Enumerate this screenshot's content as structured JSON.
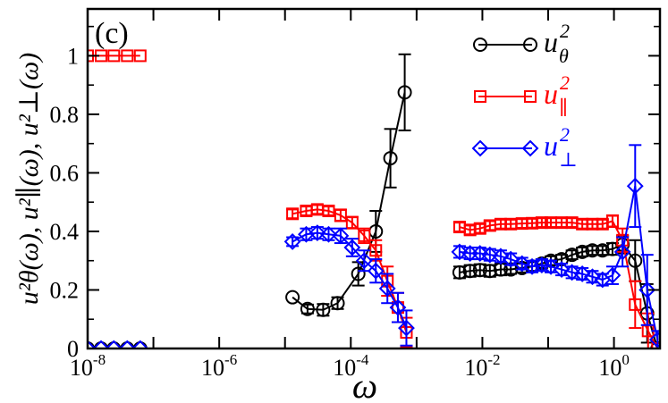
{
  "chart_data": {
    "type": "line",
    "panel_label": "(c)",
    "xlabel": "ω",
    "ylabel": "u²θ(ω), u²∥(ω), u²⊥(ω)",
    "x_scale": "log",
    "xlim": [
      1e-08,
      5
    ],
    "ylim": [
      0,
      1.16
    ],
    "grid": false,
    "legend_position": "top-right",
    "x_ticks": [
      {
        "value": 1e-08,
        "base": "10",
        "exp": "-8"
      },
      {
        "value": 1e-06,
        "base": "10",
        "exp": "-6"
      },
      {
        "value": 0.0001,
        "base": "10",
        "exp": "-4"
      },
      {
        "value": 0.01,
        "base": "10",
        "exp": "-2"
      },
      {
        "value": 1,
        "base": "10",
        "exp": "0"
      }
    ],
    "y_ticks": [
      "0",
      "0.2",
      "0.4",
      "0.6",
      "0.8",
      "1"
    ],
    "y_tick_values": [
      0,
      0.2,
      0.4,
      0.6,
      0.8,
      1.0
    ],
    "series": [
      {
        "name": "u²θ",
        "legend_base": "u",
        "legend_sup": "2",
        "legend_sub": "θ",
        "color": "#000000",
        "marker": "circle",
        "segments": [
          {
            "points": [
              [
                1e-08,
                0
              ],
              [
                1.6e-08,
                0
              ],
              [
                2.5e-08,
                0
              ],
              [
                4e-08,
                0
              ],
              [
                6.3e-08,
                0
              ]
            ]
          },
          {
            "points": [
              [
                1.3e-05,
                0.175,
                0
              ],
              [
                2.2e-05,
                0.135,
                0.015
              ],
              [
                3.8e-05,
                0.132,
                0.02
              ],
              [
                6.3e-05,
                0.155,
                0.02
              ],
              [
                0.00013,
                0.255,
                0.04
              ],
              [
                0.00024,
                0.4,
                0.07
              ],
              [
                0.0004,
                0.65,
                0.1
              ],
              [
                0.00066,
                0.875,
                0.13
              ]
            ]
          },
          {
            "points": [
              [
                0.0045,
                0.26,
                0.02
              ],
              [
                0.0065,
                0.265,
                0.02
              ],
              [
                0.0092,
                0.268,
                0.02
              ],
              [
                0.013,
                0.265,
                0.02
              ],
              [
                0.019,
                0.27,
                0.02
              ],
              [
                0.027,
                0.27,
                0.015
              ],
              [
                0.04,
                0.275,
                0.015
              ],
              [
                0.057,
                0.28,
                0.015
              ],
              [
                0.08,
                0.29,
                0.015
              ],
              [
                0.11,
                0.3,
                0.015
              ],
              [
                0.16,
                0.305,
                0.015
              ],
              [
                0.23,
                0.32,
                0.015
              ],
              [
                0.33,
                0.33,
                0.015
              ],
              [
                0.47,
                0.335,
                0.015
              ],
              [
                0.67,
                0.335,
                0.015
              ],
              [
                0.95,
                0.34,
                0.02
              ],
              [
                1.35,
                0.355,
                0.03
              ],
              [
                2.1,
                0.3,
                0.07
              ],
              [
                3.2,
                0.12,
                0.1
              ],
              [
                4.6,
                0.0,
                0
              ]
            ]
          }
        ]
      },
      {
        "name": "u²∥",
        "legend_base": "u",
        "legend_sup": "2",
        "legend_sub": "∥",
        "color": "#ff0000",
        "marker": "square",
        "segments": [
          {
            "points": [
              [
                1e-08,
                1
              ],
              [
                1.6e-08,
                1
              ],
              [
                2.5e-08,
                1
              ],
              [
                4e-08,
                1
              ],
              [
                6.3e-08,
                1
              ]
            ]
          },
          {
            "points": [
              [
                1.3e-05,
                0.46,
                0.015
              ],
              [
                2.1e-05,
                0.47,
                0.015
              ],
              [
                3.1e-05,
                0.475,
                0.015
              ],
              [
                4.6e-05,
                0.47,
                0.015
              ],
              [
                7e-05,
                0.455,
                0.02
              ],
              [
                0.000105,
                0.43,
                0.02
              ],
              [
                0.00016,
                0.385,
                0.025
              ],
              [
                0.00024,
                0.335,
                0.035
              ],
              [
                0.00036,
                0.23,
                0.05
              ],
              [
                0.00052,
                0.14,
                0.05
              ],
              [
                0.0007,
                0.055,
                0.05
              ]
            ]
          },
          {
            "points": [
              [
                0.0045,
                0.415,
                0.015
              ],
              [
                0.0065,
                0.405,
                0.015
              ],
              [
                0.0092,
                0.41,
                0.015
              ],
              [
                0.013,
                0.42,
                0.015
              ],
              [
                0.019,
                0.425,
                0.015
              ],
              [
                0.027,
                0.425,
                0.015
              ],
              [
                0.04,
                0.427,
                0.015
              ],
              [
                0.057,
                0.428,
                0.015
              ],
              [
                0.08,
                0.43,
                0.015
              ],
              [
                0.11,
                0.43,
                0.015
              ],
              [
                0.16,
                0.43,
                0.015
              ],
              [
                0.23,
                0.43,
                0.015
              ],
              [
                0.33,
                0.425,
                0.015
              ],
              [
                0.47,
                0.425,
                0.015
              ],
              [
                0.67,
                0.425,
                0.015
              ],
              [
                0.95,
                0.435,
                0.02
              ],
              [
                1.35,
                0.37,
                0.04
              ],
              [
                2.1,
                0.15,
                0.08
              ],
              [
                3.3,
                0.06,
                0.06
              ],
              [
                4.6,
                0.0,
                0
              ]
            ]
          }
        ]
      },
      {
        "name": "u²⊥",
        "legend_base": "u",
        "legend_sup": "2",
        "legend_sub": "⊥",
        "color": "#0000ff",
        "marker": "diamond",
        "segments": [
          {
            "points": [
              [
                1e-08,
                0
              ],
              [
                1.6e-08,
                0
              ],
              [
                2.5e-08,
                0
              ],
              [
                4e-08,
                0
              ],
              [
                6.3e-08,
                0
              ]
            ]
          },
          {
            "points": [
              [
                1.3e-05,
                0.365,
                0.015
              ],
              [
                2.1e-05,
                0.39,
                0.02
              ],
              [
                3.1e-05,
                0.395,
                0.02
              ],
              [
                4.6e-05,
                0.39,
                0.02
              ],
              [
                7e-05,
                0.385,
                0.025
              ],
              [
                0.000105,
                0.345,
                0.03
              ],
              [
                0.00016,
                0.3,
                0.035
              ],
              [
                0.00024,
                0.265,
                0.04
              ],
              [
                0.00036,
                0.205,
                0.05
              ],
              [
                0.00052,
                0.14,
                0.05
              ],
              [
                0.0007,
                0.07,
                0.06
              ]
            ]
          },
          {
            "points": [
              [
                0.0045,
                0.33,
                0.02
              ],
              [
                0.0065,
                0.325,
                0.02
              ],
              [
                0.0092,
                0.325,
                0.02
              ],
              [
                0.013,
                0.32,
                0.02
              ],
              [
                0.019,
                0.315,
                0.02
              ],
              [
                0.027,
                0.305,
                0.02
              ],
              [
                0.04,
                0.29,
                0.02
              ],
              [
                0.057,
                0.28,
                0.02
              ],
              [
                0.08,
                0.285,
                0.02
              ],
              [
                0.11,
                0.28,
                0.02
              ],
              [
                0.16,
                0.27,
                0.02
              ],
              [
                0.23,
                0.26,
                0.02
              ],
              [
                0.33,
                0.255,
                0.02
              ],
              [
                0.47,
                0.245,
                0.02
              ],
              [
                0.67,
                0.235,
                0.02
              ],
              [
                0.95,
                0.25,
                0.03
              ],
              [
                1.35,
                0.33,
                0.05
              ],
              [
                2.1,
                0.555,
                0.14
              ],
              [
                3.2,
                0.2,
                0.12
              ],
              [
                4.6,
                0.03,
                0.03
              ]
            ]
          }
        ]
      }
    ]
  }
}
